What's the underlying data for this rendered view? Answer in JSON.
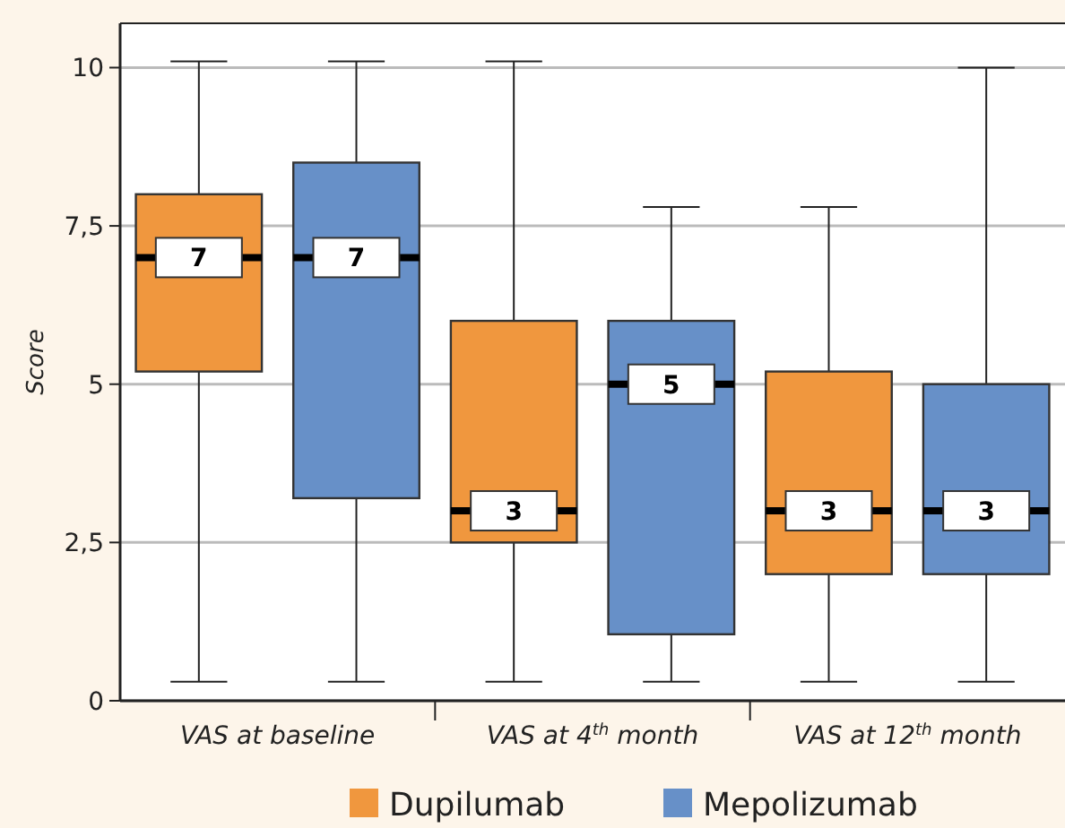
{
  "chart_data": {
    "type": "box",
    "ylabel": "Score",
    "categories": [
      "VAS at baseline",
      "VAS at 4$^{th}$ month",
      "VAS at 12$^{th}$ month"
    ],
    "series": [
      {
        "name": "Dupilumab",
        "color": "#f0973e",
        "value_labels": [
          "7",
          "3",
          "3"
        ],
        "boxes": [
          {
            "low": 0.3,
            "q1": 5.2,
            "median": 7,
            "q3": 8.0,
            "high": 10.1
          },
          {
            "low": 0.3,
            "q1": 2.5,
            "median": 3,
            "q3": 6.0,
            "high": 10.1
          },
          {
            "low": 0.3,
            "q1": 2.0,
            "median": 3,
            "q3": 5.2,
            "high": 7.8
          }
        ]
      },
      {
        "name": "Mepolizumab",
        "color": "#6790c8",
        "value_labels": [
          "7",
          "5",
          "3"
        ],
        "boxes": [
          {
            "low": 0.3,
            "q1": 3.2,
            "median": 7,
            "q3": 8.5,
            "high": 10.1
          },
          {
            "low": 0.3,
            "q1": 1.05,
            "median": 5,
            "q3": 6.0,
            "high": 7.8
          },
          {
            "low": 0.3,
            "q1": 2.0,
            "median": 3,
            "q3": 5.0,
            "high": 10.0
          }
        ]
      }
    ],
    "ylim": [
      0,
      10.7
    ],
    "yticks": [
      0,
      {
        "value": 2.5,
        "label": "2,5"
      },
      5,
      {
        "value": 7.5,
        "label": "7,5"
      },
      10
    ],
    "grid": "y",
    "legend": "bottom"
  }
}
